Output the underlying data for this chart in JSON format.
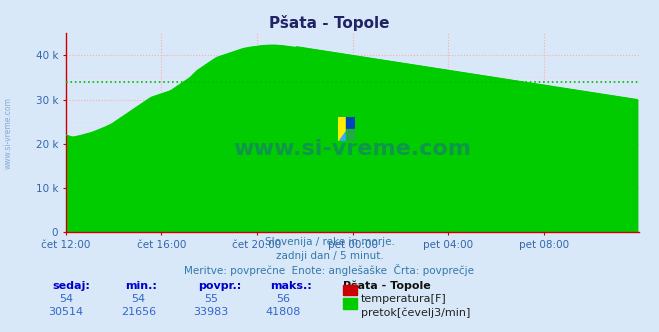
{
  "title": "Pšata - Topole",
  "bg_color": "#d8e8f8",
  "plot_bg_color": "#d8e8f8",
  "grid_color": "#ffaaaa",
  "xlim": [
    0,
    288
  ],
  "ylim": [
    0,
    45000
  ],
  "yticks": [
    0,
    10000,
    20000,
    30000,
    40000
  ],
  "ytick_labels": [
    "0",
    "10 k",
    "20 k",
    "30 k",
    "40 k"
  ],
  "xtick_positions": [
    0,
    48,
    96,
    144,
    192,
    240
  ],
  "xtick_labels": [
    "čet 12:00",
    "čet 16:00",
    "čet 20:00",
    "pet 00:00",
    "pet 04:00",
    "pet 08:00"
  ],
  "flow_color": "#00cc00",
  "flow_fill_color": "#00cc00",
  "temp_color": "#cc0000",
  "avg_line_color": "#00bb00",
  "avg_value": 33983,
  "watermark": "www.si-vreme.com",
  "subtitle1": "Slovenija / reke in morje.",
  "subtitle2": "zadnji dan / 5 minut.",
  "subtitle3": "Meritve: povprečne  Enote: anglešaške  Črta: povprečje",
  "legend_title": "Pšata - Topole",
  "legend_temp_label": "temperatura[F]",
  "legend_flow_label": "pretok[čevelj3/min]",
  "sedaj_label": "sedaj:",
  "min_label": "min.:",
  "povpr_label": "povpr.:",
  "maks_label": "maks.:",
  "temp_sedaj": 54,
  "temp_min": 54,
  "temp_povpr": 55,
  "temp_maks": 56,
  "flow_sedaj": 30514,
  "flow_min": 21656,
  "flow_povpr": 33983,
  "flow_maks": 41808,
  "watermark_color": "#2255aa",
  "axis_color": "#cc0000",
  "tick_color": "#3366aa",
  "left_watermark": "www.si-vreme.com"
}
